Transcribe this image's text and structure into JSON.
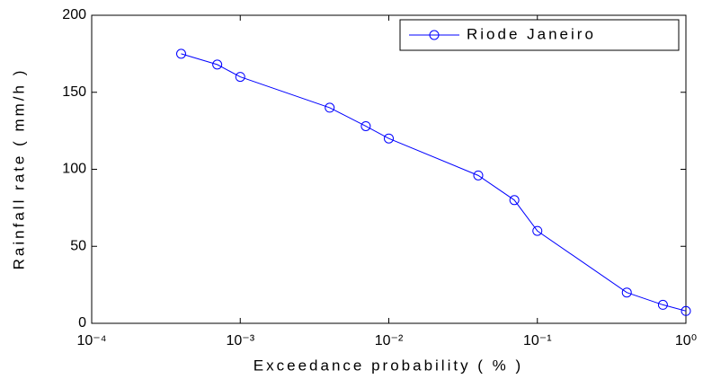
{
  "chart_data": {
    "type": "line",
    "xlabel": "Exceedance probability ( % )",
    "ylabel": "Rainfall rate ( mm/h )",
    "x": [
      0.0004,
      0.0007,
      0.001,
      0.004,
      0.007,
      0.01,
      0.04,
      0.07,
      0.1,
      0.4,
      0.7,
      1
    ],
    "series": [
      {
        "name": "Riode Janeiro",
        "color": "#0000ff",
        "values": [
          175,
          168,
          160,
          140,
          128,
          120,
          96,
          80,
          60,
          20,
          12,
          8
        ]
      }
    ],
    "xscale": "log",
    "xlim": [
      0.0001,
      1
    ],
    "xticks": [
      {
        "value": 0.0001,
        "label": "10⁻⁴"
      },
      {
        "value": 0.001,
        "label": "10⁻³"
      },
      {
        "value": 0.01,
        "label": "10⁻²"
      },
      {
        "value": 0.1,
        "label": "10⁻¹"
      },
      {
        "value": 1,
        "label": "10⁰"
      }
    ],
    "ylim": [
      0,
      200
    ],
    "yticks": [
      0,
      50,
      100,
      150,
      200
    ],
    "legend": "upper right",
    "grid": false
  }
}
